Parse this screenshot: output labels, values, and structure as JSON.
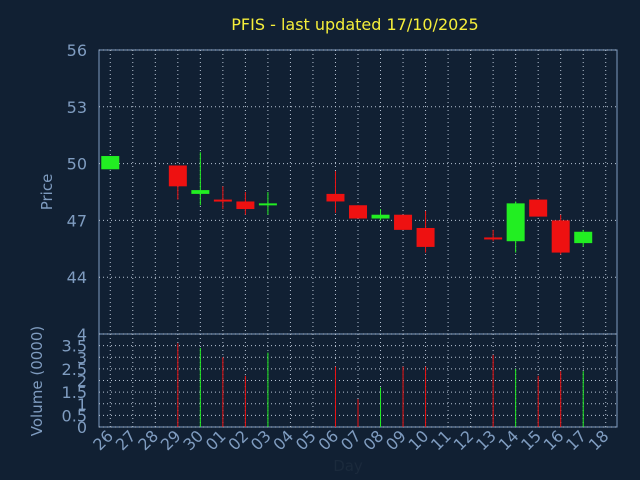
{
  "chart_data": {
    "type": "candlestick",
    "title": "PFIS - last updated 17/10/2025",
    "xlabel": "Day",
    "price_panel": {
      "ylabel": "Price",
      "ylim": [
        41,
        56
      ],
      "yticks": [
        "44",
        "47",
        "50",
        "53",
        "56"
      ],
      "grid": true
    },
    "volume_panel": {
      "ylabel": "Volume (0000)",
      "ylim": [
        0,
        4
      ],
      "yticks": [
        "0",
        "0.5",
        "1",
        "1.5",
        "2",
        "2.5",
        "3",
        "3.5",
        "4"
      ],
      "grid": true
    },
    "x_ticks": [
      "26",
      "27",
      "28",
      "29",
      "30",
      "01",
      "02",
      "03",
      "04",
      "05",
      "06",
      "07",
      "08",
      "09",
      "10",
      "11",
      "12",
      "13",
      "14",
      "15",
      "16",
      "17",
      "18"
    ],
    "candles": [
      {
        "day": "26",
        "open": 49.7,
        "high": 50.4,
        "low": 49.7,
        "close": 50.4
      },
      {
        "day": "29",
        "open": 49.9,
        "high": 49.9,
        "low": 48.1,
        "close": 48.8
      },
      {
        "day": "30",
        "open": 48.4,
        "high": 50.6,
        "low": 47.8,
        "close": 48.6
      },
      {
        "day": "01",
        "open": 48.1,
        "high": 48.8,
        "low": 47.6,
        "close": 48.0
      },
      {
        "day": "02",
        "open": 48.0,
        "high": 48.5,
        "low": 47.3,
        "close": 47.6
      },
      {
        "day": "03",
        "open": 47.8,
        "high": 48.5,
        "low": 47.3,
        "close": 47.9
      },
      {
        "day": "06",
        "open": 48.4,
        "high": 49.6,
        "low": 47.4,
        "close": 48.0
      },
      {
        "day": "07",
        "open": 47.8,
        "high": 47.8,
        "low": 47.1,
        "close": 47.1
      },
      {
        "day": "08",
        "open": 47.1,
        "high": 47.6,
        "low": 47.0,
        "close": 47.3
      },
      {
        "day": "09",
        "open": 47.3,
        "high": 47.3,
        "low": 46.5,
        "close": 46.5
      },
      {
        "day": "10",
        "open": 46.6,
        "high": 47.5,
        "low": 45.3,
        "close": 45.6
      },
      {
        "day": "13",
        "open": 46.1,
        "high": 46.5,
        "low": 45.9,
        "close": 46.0
      },
      {
        "day": "14",
        "open": 45.9,
        "high": 48.0,
        "low": 45.3,
        "close": 47.9
      },
      {
        "day": "15",
        "open": 48.1,
        "high": 48.1,
        "low": 47.2,
        "close": 47.2
      },
      {
        "day": "16",
        "open": 47.0,
        "high": 47.3,
        "low": 45.2,
        "close": 45.3
      },
      {
        "day": "17",
        "open": 45.8,
        "high": 46.5,
        "low": 45.6,
        "close": 46.4
      }
    ],
    "volume": [
      {
        "day": "29",
        "value": 3.6,
        "direction": "down"
      },
      {
        "day": "30",
        "value": 3.4,
        "direction": "up"
      },
      {
        "day": "01",
        "value": 3.0,
        "direction": "down"
      },
      {
        "day": "02",
        "value": 2.2,
        "direction": "down"
      },
      {
        "day": "03",
        "value": 3.2,
        "direction": "up"
      },
      {
        "day": "06",
        "value": 2.6,
        "direction": "down"
      },
      {
        "day": "07",
        "value": 1.2,
        "direction": "down"
      },
      {
        "day": "08",
        "value": 1.7,
        "direction": "up"
      },
      {
        "day": "09",
        "value": 2.6,
        "direction": "down"
      },
      {
        "day": "10",
        "value": 2.6,
        "direction": "down"
      },
      {
        "day": "13",
        "value": 3.1,
        "direction": "down"
      },
      {
        "day": "14",
        "value": 2.5,
        "direction": "up"
      },
      {
        "day": "15",
        "value": 2.2,
        "direction": "down"
      },
      {
        "day": "16",
        "value": 2.4,
        "direction": "down"
      },
      {
        "day": "17",
        "value": 2.4,
        "direction": "up"
      }
    ],
    "colors": {
      "background": "#112033",
      "axis": "#7f9cc0",
      "grid": "#b8c4d4",
      "title": "#f5ee3a",
      "up": "#22ee22",
      "down": "#ee1111",
      "xlabel": "#1b2a3c"
    }
  }
}
